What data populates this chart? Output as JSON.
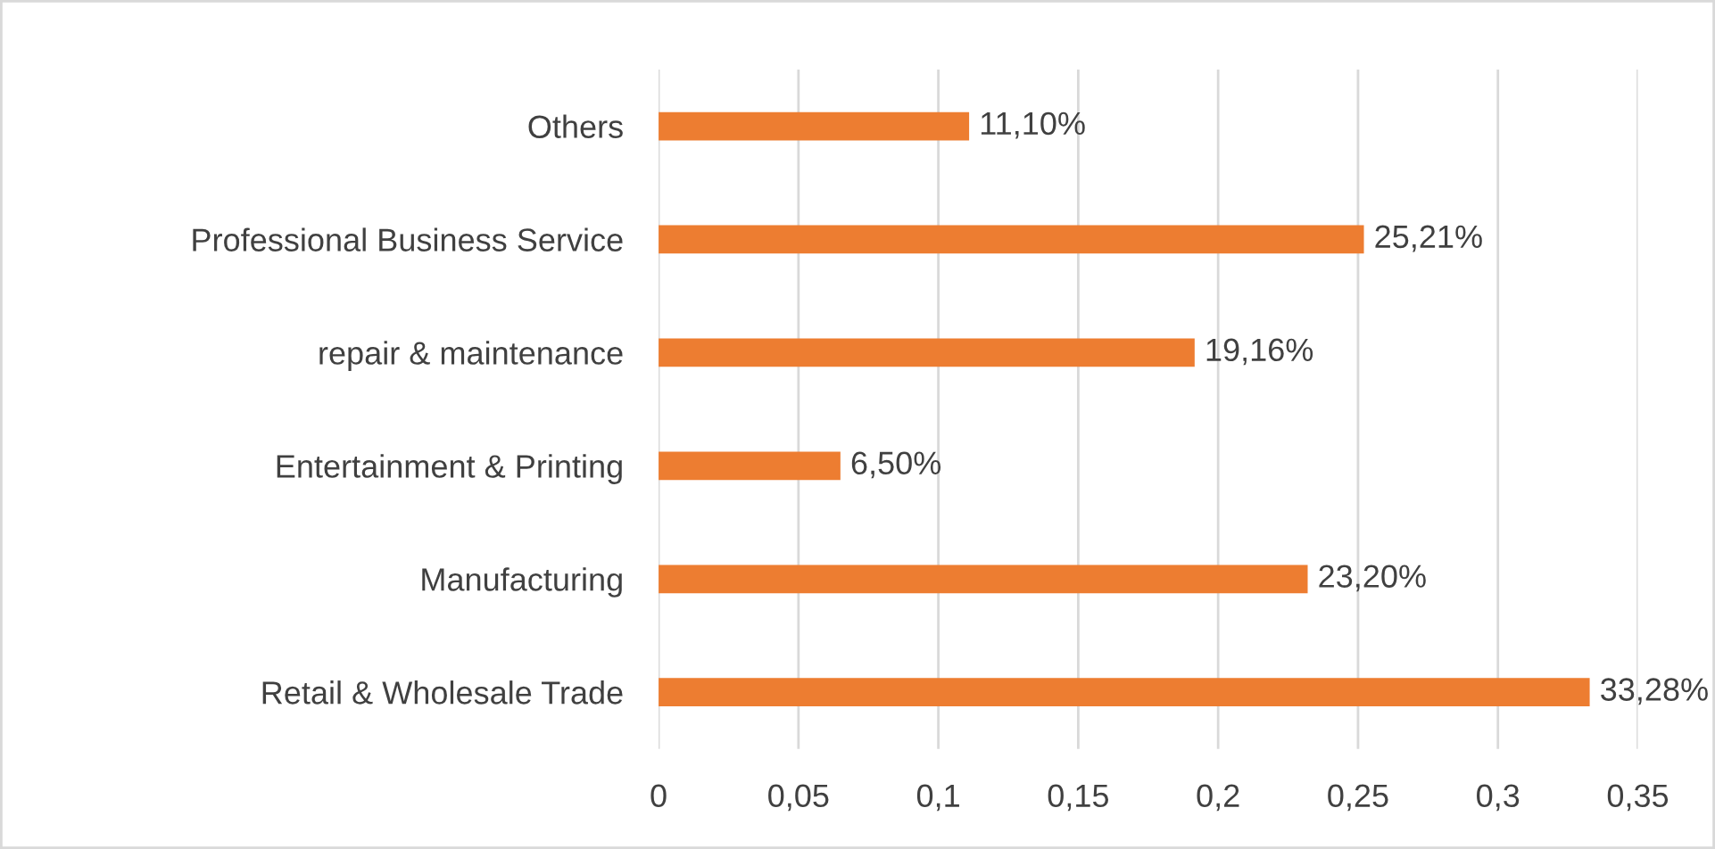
{
  "chart_data": {
    "type": "bar",
    "orientation": "horizontal",
    "categories": [
      "Others",
      "Professional Business Service",
      "repair & maintenance",
      "Entertainment & Printing",
      "Manufacturing",
      "Retail & Wholesale Trade"
    ],
    "values": [
      0.111,
      0.2521,
      0.1916,
      0.065,
      0.232,
      0.3328
    ],
    "value_labels": [
      "11,10%",
      "25,21%",
      "19,16%",
      "6,50%",
      "23,20%",
      "33,28%"
    ],
    "color": "#ed7d31",
    "xlim": [
      0,
      0.35
    ],
    "xticks": [
      0,
      {
        "value": 0.05,
        "label": "0,05"
      },
      {
        "value": 0.1,
        "label": "0,1"
      },
      {
        "value": 0.15,
        "label": "0,15"
      },
      {
        "value": 0.2,
        "label": "0,2"
      },
      {
        "value": 0.25,
        "label": "0,25"
      },
      {
        "value": 0.3,
        "label": "0,3"
      },
      {
        "value": 0.35,
        "label": "0,35"
      }
    ],
    "grid": "x"
  }
}
